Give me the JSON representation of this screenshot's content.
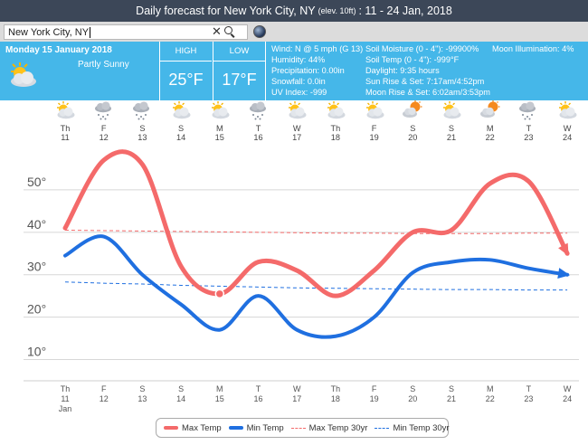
{
  "header": {
    "title_main": "Daily forecast for New York City, NY",
    "title_elev": "(elev. 10ft)",
    "title_range": ": 11 - 24 Jan, 2018"
  },
  "search": {
    "value": "New York City, NY",
    "clear_glyph": "✕"
  },
  "current": {
    "date": "Monday 15 January 2018",
    "condition": "Partly Sunny",
    "high_label": "HIGH",
    "high_value": "25°F",
    "low_label": "LOW",
    "low_value": "17°F",
    "stats_col1": [
      "Wind: N @ 5 mph (G 13)",
      "Humidity: 44%",
      "Precipitation: 0.00in",
      "Snowfall: 0.0in",
      "UV Index: -999"
    ],
    "stats_col2": [
      "Soil Moisture (0 - 4\"): -99900%",
      "Soil Temp (0 - 4\"): -999°F",
      "Daylight: 9:35 hours",
      "Sun Rise & Set: 7:17am/4:52pm",
      "Moon Rise & Set: 6:02am/3:53pm"
    ],
    "moon_illumination": "Moon Illumination: 4%"
  },
  "forecast_days": [
    {
      "dow": "Th",
      "date": "11",
      "icon": "partly-sunny-icon"
    },
    {
      "dow": "F",
      "date": "12",
      "icon": "snow-cloud-icon"
    },
    {
      "dow": "S",
      "date": "13",
      "icon": "snow-cloud-icon"
    },
    {
      "dow": "S",
      "date": "14",
      "icon": "partly-sunny-icon"
    },
    {
      "dow": "M",
      "date": "15",
      "icon": "partly-sunny-icon"
    },
    {
      "dow": "T",
      "date": "16",
      "icon": "snow-cloud-icon"
    },
    {
      "dow": "W",
      "date": "17",
      "icon": "partly-sunny-icon"
    },
    {
      "dow": "Th",
      "date": "18",
      "icon": "partly-sunny-icon"
    },
    {
      "dow": "F",
      "date": "19",
      "icon": "partly-sunny-icon"
    },
    {
      "dow": "S",
      "date": "20",
      "icon": "sun-cloud-icon"
    },
    {
      "dow": "S",
      "date": "21",
      "icon": "partly-sunny-icon"
    },
    {
      "dow": "M",
      "date": "22",
      "icon": "sun-cloud-icon"
    },
    {
      "dow": "T",
      "date": "23",
      "icon": "snow-cloud-icon"
    },
    {
      "dow": "W",
      "date": "24",
      "icon": "partly-sunny-icon"
    }
  ],
  "colors": {
    "max": "#f46a6a",
    "min": "#1f6fe0",
    "panel": "#45b7e9",
    "titlebar": "#3c4758"
  },
  "chart_data": {
    "type": "line",
    "x": [
      "11",
      "12",
      "13",
      "14",
      "15",
      "16",
      "17",
      "18",
      "19",
      "20",
      "21",
      "22",
      "23",
      "24"
    ],
    "x_dow": [
      "Th",
      "F",
      "S",
      "S",
      "M",
      "T",
      "W",
      "Th",
      "F",
      "S",
      "S",
      "M",
      "T",
      "W"
    ],
    "x_month": "Jan",
    "y_ticks": [
      "10°",
      "20°",
      "30°",
      "40°",
      "50°"
    ],
    "ylim": [
      5,
      60
    ],
    "highlight_index": 4,
    "series": [
      {
        "name": "Max Temp",
        "values": [
          41,
          57,
          56,
          32,
          25.5,
          33,
          31,
          25,
          31,
          40,
          40.5,
          51.5,
          52,
          35
        ]
      },
      {
        "name": "Min Temp",
        "values": [
          34.5,
          39,
          30,
          23,
          17,
          25,
          17,
          15.5,
          20,
          30.5,
          33,
          33.5,
          31.5,
          30
        ]
      },
      {
        "name": "Max Temp 30yr",
        "values": [
          40.5,
          40.4,
          40.3,
          40.2,
          40.1,
          40.0,
          39.9,
          39.8,
          39.8,
          39.7,
          39.7,
          39.7,
          39.8,
          39.8
        ]
      },
      {
        "name": "Min Temp 30yr",
        "values": [
          28.3,
          28.0,
          27.8,
          27.5,
          27.3,
          27.1,
          26.9,
          26.8,
          26.7,
          26.6,
          26.5,
          26.5,
          26.4,
          26.4
        ]
      }
    ],
    "legend": "bottom"
  }
}
